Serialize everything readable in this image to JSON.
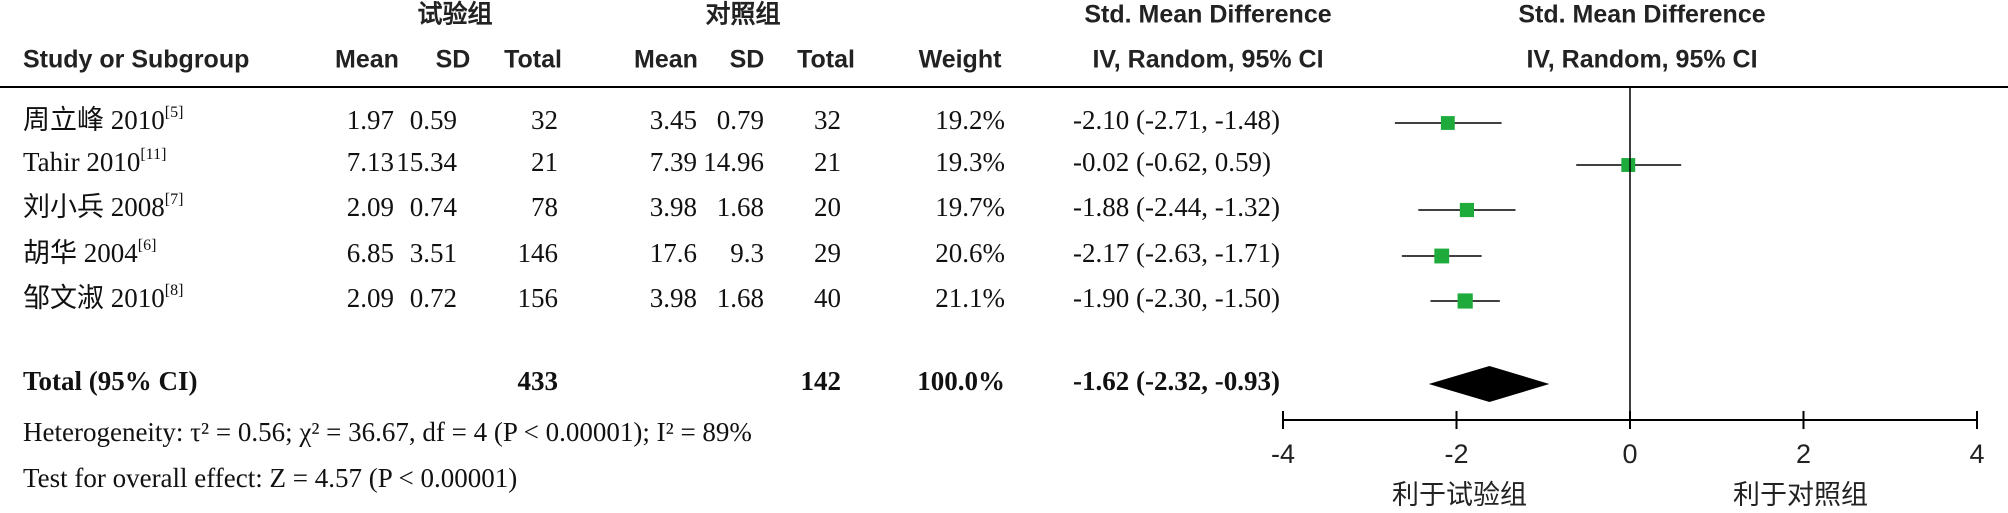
{
  "chart_data": {
    "type": "forest",
    "group_headers": [
      "试验组",
      "对照组"
    ],
    "effect_header": [
      "Std. Mean Difference",
      "IV, Random, 95% CI"
    ],
    "plot_header": [
      "Std. Mean Difference",
      "IV, Random, 95% CI"
    ],
    "columns": [
      "Study or Subgroup",
      "Mean",
      "SD",
      "Total",
      "Mean",
      "SD",
      "Total",
      "Weight"
    ],
    "studies": [
      {
        "name": "周立峰 2010",
        "ref": "[5]",
        "mean1": 1.97,
        "sd1": 0.59,
        "n1": 32,
        "mean2": 3.45,
        "sd2": 0.79,
        "n2": 32,
        "weight": 19.2,
        "weight_label": "19.2%",
        "smd": -2.1,
        "ci": [
          -2.71,
          -1.48
        ],
        "ci_label": "-2.10 (-2.71, -1.48)"
      },
      {
        "name": "Tahir 2010",
        "ref": "[11]",
        "mean1": 7.13,
        "sd1": 15.34,
        "n1": 21,
        "mean2": 7.39,
        "sd2": 14.96,
        "n2": 21,
        "weight": 19.3,
        "weight_label": "19.3%",
        "smd": -0.02,
        "ci": [
          -0.62,
          0.59
        ],
        "ci_label": "-0.02 (-0.62, 0.59)"
      },
      {
        "name": "刘小兵 2008",
        "ref": "[7]",
        "mean1": 2.09,
        "sd1": 0.74,
        "n1": 78,
        "mean2": 3.98,
        "sd2": 1.68,
        "n2": 20,
        "weight": 19.7,
        "weight_label": "19.7%",
        "smd": -1.88,
        "ci": [
          -2.44,
          -1.32
        ],
        "ci_label": "-1.88 (-2.44, -1.32)"
      },
      {
        "name": "胡华 2004",
        "ref": "[6]",
        "mean1": 6.85,
        "sd1": 3.51,
        "n1": 146,
        "mean2": 17.6,
        "sd2": 9.3,
        "n2": 29,
        "weight": 20.6,
        "weight_label": "20.6%",
        "smd": -2.17,
        "ci": [
          -2.63,
          -1.71
        ],
        "ci_label": "-2.17 (-2.63, -1.71)"
      },
      {
        "name": "邹文淑 2010",
        "ref": "[8]",
        "mean1": 2.09,
        "sd1": 0.72,
        "n1": 156,
        "mean2": 3.98,
        "sd2": 1.68,
        "n2": 40,
        "weight": 21.1,
        "weight_label": "21.1%",
        "smd": -1.9,
        "ci": [
          -2.3,
          -1.5
        ],
        "ci_label": "-1.90 (-2.30, -1.50)"
      }
    ],
    "total": {
      "label": "Total (95% CI)",
      "n1": 433,
      "n2": 142,
      "weight_label": "100.0%",
      "smd": -1.62,
      "ci": [
        -2.32,
        -0.93
      ],
      "ci_label": "-1.62 (-2.32, -0.93)"
    },
    "heterogeneity": "Heterogeneity: τ² = 0.56; χ² = 36.67, df = 4 (P < 0.00001); I² = 89%",
    "overall_effect": "Test for overall effect: Z = 4.57 (P < 0.00001)",
    "xlim": [
      -4,
      4
    ],
    "xticks": [
      -4,
      -2,
      0,
      2,
      4
    ],
    "xlabels": [
      "利于试验组",
      "利于对照组"
    ],
    "marker_color": "#1fab3c",
    "diamond_color": "#000000"
  }
}
